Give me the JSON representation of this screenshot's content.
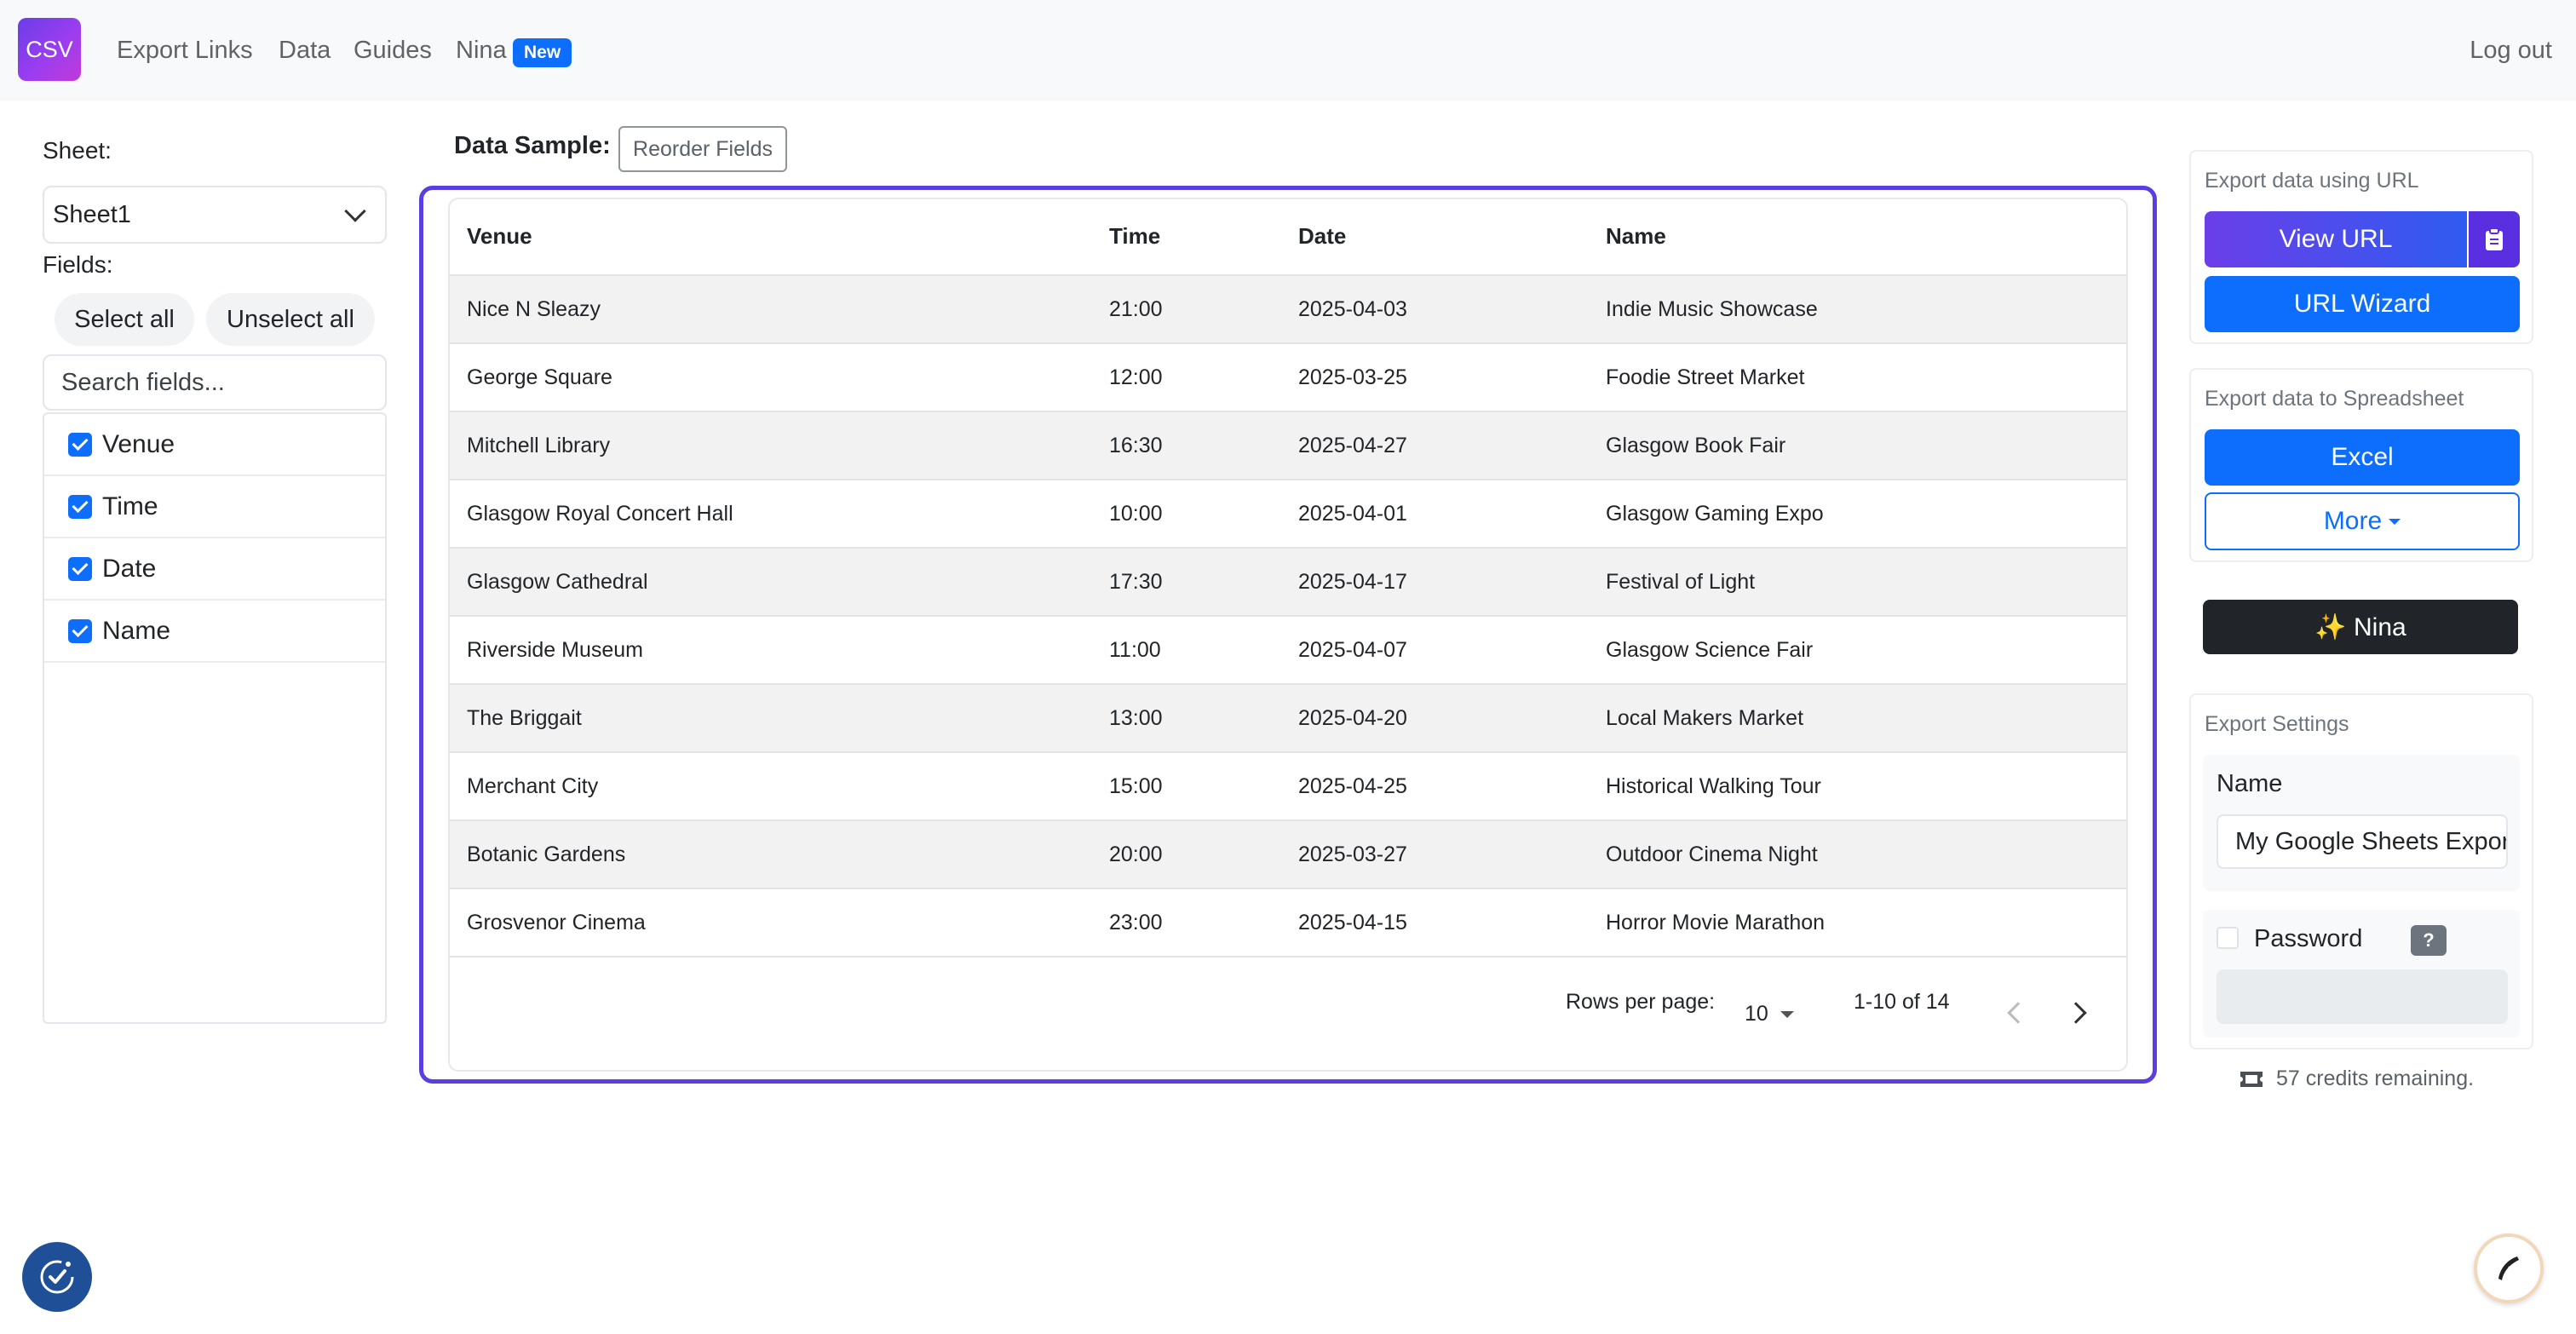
{
  "nav": {
    "logo": "CSV",
    "links": [
      "Export Links",
      "Data",
      "Guides",
      "Nina"
    ],
    "badge": "New",
    "logout": "Log out"
  },
  "left": {
    "sheet_label": "Sheet:",
    "sheet_value": "Sheet1",
    "fields_label": "Fields:",
    "select_all": "Select all",
    "unselect_all": "Unselect all",
    "search_placeholder": "Search fields...",
    "fields": [
      {
        "label": "Venue",
        "checked": true
      },
      {
        "label": "Time",
        "checked": true
      },
      {
        "label": "Date",
        "checked": true
      },
      {
        "label": "Name",
        "checked": true
      }
    ]
  },
  "main": {
    "data_sample_label": "Data Sample:",
    "reorder_button": "Reorder Fields",
    "columns": [
      "Venue",
      "Time",
      "Date",
      "Name"
    ],
    "rows": [
      [
        "Nice N Sleazy",
        "21:00",
        "2025-04-03",
        "Indie Music Showcase"
      ],
      [
        "George Square",
        "12:00",
        "2025-03-25",
        "Foodie Street Market"
      ],
      [
        "Mitchell Library",
        "16:30",
        "2025-04-27",
        "Glasgow Book Fair"
      ],
      [
        "Glasgow Royal Concert Hall",
        "10:00",
        "2025-04-01",
        "Glasgow Gaming Expo"
      ],
      [
        "Glasgow Cathedral",
        "17:30",
        "2025-04-17",
        "Festival of Light"
      ],
      [
        "Riverside Museum",
        "11:00",
        "2025-04-07",
        "Glasgow Science Fair"
      ],
      [
        "The Briggait",
        "13:00",
        "2025-04-20",
        "Local Makers Market"
      ],
      [
        "Merchant City",
        "15:00",
        "2025-04-25",
        "Historical Walking Tour"
      ],
      [
        "Botanic Gardens",
        "20:00",
        "2025-03-27",
        "Outdoor Cinema Night"
      ],
      [
        "Grosvenor Cinema",
        "23:00",
        "2025-04-15",
        "Horror Movie Marathon"
      ]
    ],
    "rows_per_page_label": "Rows per page:",
    "rows_per_page_value": "10",
    "range_text": "1-10 of 14"
  },
  "right": {
    "export_url_title": "Export data using URL",
    "view_url": "View URL",
    "url_wizard": "URL Wizard",
    "export_sheet_title": "Export data to Spreadsheet",
    "excel": "Excel",
    "more": "More",
    "nina_button": "✨ Nina",
    "settings_title": "Export Settings",
    "name_label": "Name",
    "name_value": "My Google Sheets Export",
    "password_label": "Password",
    "help": "?",
    "credits": "57 credits remaining."
  },
  "colors": {
    "primary": "#0d6efd",
    "frame": "#5b3ee0",
    "dark": "#212529"
  }
}
